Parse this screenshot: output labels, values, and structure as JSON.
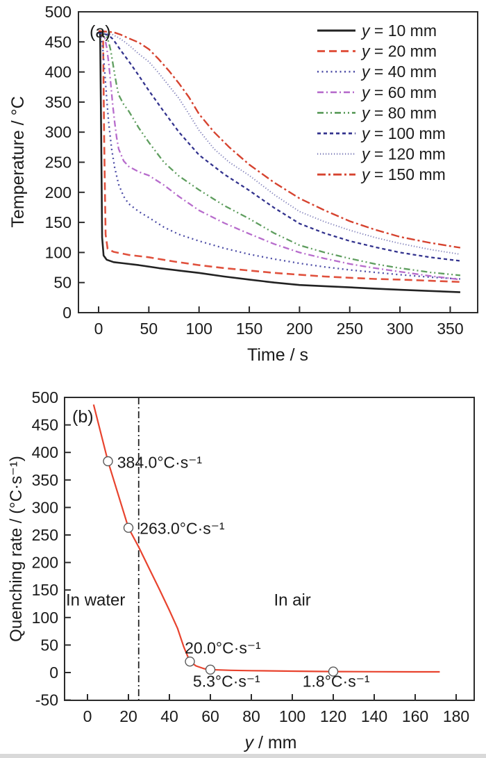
{
  "figure": {
    "background": "#ffffff",
    "frame_color": "#2b2b2b",
    "tick_label_color": "#1a1a1a"
  },
  "chart_data": [
    {
      "id": "a",
      "type": "line",
      "panel_label": "(a)",
      "xlabel": "Time / s",
      "ylabel": "Temperature / °C",
      "xlim": [
        -20,
        378
      ],
      "ylim": [
        0,
        500
      ],
      "x_ticks": [
        0,
        50,
        100,
        150,
        200,
        250,
        300,
        350
      ],
      "y_ticks": [
        0,
        50,
        100,
        150,
        200,
        250,
        300,
        350,
        400,
        450,
        500
      ],
      "grid": false,
      "legend_position": "top-right",
      "series": [
        {
          "name": "y = 10 mm",
          "label_prefix": "y",
          "label_rest": " = 10 mm",
          "color": "#222222",
          "dash": "solid",
          "width": 2.6,
          "points": [
            [
              0,
              466
            ],
            [
              1.5,
              466
            ],
            [
              2.5,
              310
            ],
            [
              3.5,
              125
            ],
            [
              5,
              95
            ],
            [
              8,
              88
            ],
            [
              15,
              84
            ],
            [
              25,
              82
            ],
            [
              40,
              79
            ],
            [
              60,
              74
            ],
            [
              80,
              70
            ],
            [
              100,
              66
            ],
            [
              125,
              60
            ],
            [
              150,
              55
            ],
            [
              175,
              50
            ],
            [
              200,
              46
            ],
            [
              225,
              44
            ],
            [
              250,
              42
            ],
            [
              275,
              40
            ],
            [
              300,
              38
            ],
            [
              330,
              36
            ],
            [
              360,
              34
            ]
          ]
        },
        {
          "name": "y = 20 mm",
          "label_prefix": "y",
          "label_rest": " = 20 mm",
          "color": "#e0513d",
          "dash": "dash",
          "width": 2.6,
          "points": [
            [
              0,
              468
            ],
            [
              3,
              466
            ],
            [
              4.5,
              455
            ],
            [
              5.5,
              290
            ],
            [
              7,
              130
            ],
            [
              9,
              106
            ],
            [
              15,
              101
            ],
            [
              30,
              96
            ],
            [
              50,
              92
            ],
            [
              75,
              85
            ],
            [
              100,
              79
            ],
            [
              125,
              74
            ],
            [
              150,
              70
            ],
            [
              175,
              66
            ],
            [
              200,
              63
            ],
            [
              225,
              60
            ],
            [
              250,
              58
            ],
            [
              275,
              56
            ],
            [
              300,
              55
            ],
            [
              330,
              53
            ],
            [
              360,
              51
            ]
          ]
        },
        {
          "name": "y = 40 mm",
          "label_prefix": "y",
          "label_rest": " = 40 mm",
          "color": "#4c4ca6",
          "dash": "dot",
          "width": 2.3,
          "points": [
            [
              0,
              465
            ],
            [
              2,
              462
            ],
            [
              4,
              442
            ],
            [
              6,
              402
            ],
            [
              8,
              357
            ],
            [
              10,
              316
            ],
            [
              13,
              272
            ],
            [
              16,
              241
            ],
            [
              20,
              213
            ],
            [
              25,
              193
            ],
            [
              30,
              181
            ],
            [
              40,
              168
            ],
            [
              50,
              158
            ],
            [
              65,
              142
            ],
            [
              80,
              130
            ],
            [
              100,
              119
            ],
            [
              125,
              107
            ],
            [
              150,
              97
            ],
            [
              175,
              89
            ],
            [
              200,
              82
            ],
            [
              225,
              76
            ],
            [
              250,
              71
            ],
            [
              275,
              67
            ],
            [
              300,
              63
            ],
            [
              330,
              59
            ],
            [
              360,
              56
            ]
          ]
        },
        {
          "name": "y = 60 mm",
          "label_prefix": "y",
          "label_rest": " = 60 mm",
          "color": "#b76ccc",
          "dash": "dashdot",
          "width": 2.3,
          "points": [
            [
              0,
              466
            ],
            [
              4,
              464
            ],
            [
              6,
              458
            ],
            [
              8,
              441
            ],
            [
              10,
              416
            ],
            [
              12,
              382
            ],
            [
              14,
              346
            ],
            [
              16,
              316
            ],
            [
              18,
              291
            ],
            [
              20,
              272
            ],
            [
              25,
              252
            ],
            [
              30,
              243
            ],
            [
              40,
              234
            ],
            [
              50,
              228
            ],
            [
              65,
              212
            ],
            [
              80,
              193
            ],
            [
              100,
              170
            ],
            [
              125,
              149
            ],
            [
              150,
              131
            ],
            [
              175,
              114
            ],
            [
              200,
              100
            ],
            [
              225,
              90
            ],
            [
              250,
              81
            ],
            [
              275,
              74
            ],
            [
              300,
              68
            ],
            [
              330,
              61
            ],
            [
              360,
              55
            ]
          ]
        },
        {
          "name": "y = 80 mm",
          "label_prefix": "y",
          "label_rest": " = 80 mm",
          "color": "#5f9e5f",
          "dash": "dashdotdot",
          "width": 2.3,
          "points": [
            [
              0,
              465
            ],
            [
              5,
              463
            ],
            [
              8,
              459
            ],
            [
              10,
              450
            ],
            [
              12,
              436
            ],
            [
              14,
              416
            ],
            [
              16,
              396
            ],
            [
              18,
              378
            ],
            [
              20,
              362
            ],
            [
              25,
              346
            ],
            [
              30,
              335
            ],
            [
              40,
              307
            ],
            [
              50,
              283
            ],
            [
              65,
              250
            ],
            [
              80,
              227
            ],
            [
              100,
              204
            ],
            [
              125,
              178
            ],
            [
              150,
              156
            ],
            [
              175,
              132
            ],
            [
              200,
              112
            ],
            [
              225,
              100
            ],
            [
              250,
              90
            ],
            [
              275,
              81
            ],
            [
              300,
              74
            ],
            [
              330,
              67
            ],
            [
              360,
              62
            ]
          ]
        },
        {
          "name": "y = 100 mm",
          "label_prefix": "y",
          "label_rest": " = 100 mm",
          "color": "#33338e",
          "dash": "shortdash",
          "width": 2.3,
          "points": [
            [
              0,
              465
            ],
            [
              6,
              463
            ],
            [
              10,
              461
            ],
            [
              14,
              455
            ],
            [
              18,
              446
            ],
            [
              22,
              436
            ],
            [
              26,
              427
            ],
            [
              30,
              418
            ],
            [
              40,
              394
            ],
            [
              50,
              369
            ],
            [
              65,
              334
            ],
            [
              80,
              300
            ],
            [
              100,
              262
            ],
            [
              125,
              230
            ],
            [
              150,
              203
            ],
            [
              175,
              174
            ],
            [
              200,
              148
            ],
            [
              225,
              132
            ],
            [
              250,
              119
            ],
            [
              275,
              109
            ],
            [
              300,
              100
            ],
            [
              330,
              92
            ],
            [
              360,
              86
            ]
          ]
        },
        {
          "name": "y = 120 mm",
          "label_prefix": "y",
          "label_rest": " = 120 mm",
          "color": "#7d7db8",
          "dash": "finedot",
          "width": 2.0,
          "points": [
            [
              0,
              466
            ],
            [
              8,
              464
            ],
            [
              14,
              462
            ],
            [
              20,
              457
            ],
            [
              26,
              450
            ],
            [
              32,
              442
            ],
            [
              40,
              430
            ],
            [
              50,
              417
            ],
            [
              60,
              398
            ],
            [
              70,
              377
            ],
            [
              80,
              356
            ],
            [
              90,
              330
            ],
            [
              100,
              303
            ],
            [
              115,
              272
            ],
            [
              130,
              250
            ],
            [
              150,
              228
            ],
            [
              175,
              196
            ],
            [
              200,
              168
            ],
            [
              225,
              151
            ],
            [
              250,
              137
            ],
            [
              275,
              125
            ],
            [
              300,
              115
            ],
            [
              330,
              105
            ],
            [
              360,
              97
            ]
          ]
        },
        {
          "name": "y = 150 mm",
          "label_prefix": "y",
          "label_rest": " = 150 mm",
          "color": "#d6432f",
          "dash": "dashdot2",
          "width": 2.4,
          "points": [
            [
              0,
              468
            ],
            [
              8,
              467
            ],
            [
              15,
              466
            ],
            [
              22,
              462
            ],
            [
              30,
              456
            ],
            [
              40,
              449
            ],
            [
              50,
              438
            ],
            [
              60,
              421
            ],
            [
              70,
              402
            ],
            [
              80,
              381
            ],
            [
              90,
              358
            ],
            [
              100,
              330
            ],
            [
              115,
              300
            ],
            [
              130,
              275
            ],
            [
              150,
              246
            ],
            [
              175,
              216
            ],
            [
              200,
              190
            ],
            [
              225,
              170
            ],
            [
              250,
              152
            ],
            [
              275,
              138
            ],
            [
              300,
              126
            ],
            [
              330,
              116
            ],
            [
              360,
              108
            ]
          ]
        }
      ]
    },
    {
      "id": "b",
      "type": "line",
      "panel_label": "(b)",
      "xlabel_prefix": "y",
      "xlabel_rest": " / mm",
      "ylabel": "Quenching rate / (°C·s⁻¹)",
      "xlim": [
        -11,
        189
      ],
      "ylim": [
        -50,
        500
      ],
      "x_ticks": [
        0,
        20,
        40,
        60,
        80,
        100,
        120,
        140,
        160,
        180
      ],
      "y_ticks": [
        -50,
        0,
        50,
        100,
        150,
        200,
        250,
        300,
        350,
        400,
        450,
        500
      ],
      "grid": false,
      "line_color": "#e8432e",
      "line_width": 2.2,
      "points": [
        [
          3,
          487
        ],
        [
          10,
          384
        ],
        [
          20,
          263
        ],
        [
          25,
          228
        ],
        [
          30,
          190
        ],
        [
          35,
          152
        ],
        [
          40,
          113
        ],
        [
          44,
          80
        ],
        [
          47,
          47
        ],
        [
          50,
          20
        ],
        [
          53,
          12
        ],
        [
          57,
          7
        ],
        [
          60,
          5.3
        ],
        [
          70,
          4
        ],
        [
          80,
          3.4
        ],
        [
          100,
          2.5
        ],
        [
          120,
          1.8
        ],
        [
          140,
          1.5
        ],
        [
          160,
          1.3
        ],
        [
          172,
          1.2
        ]
      ],
      "marker_fill": "#ffffff",
      "marker_stroke": "#5a5a5a",
      "markers": [
        {
          "x": 10,
          "y": 384,
          "label": "384.0°C·s⁻¹",
          "label_x": 14.5,
          "label_v": 372
        },
        {
          "x": 20,
          "y": 263,
          "label": "263.0°C·s⁻¹",
          "label_x": 25.5,
          "label_v": 252
        },
        {
          "x": 50,
          "y": 20,
          "label": "20.0°C·s⁻¹",
          "label_x": 47.5,
          "label_v": 35
        },
        {
          "x": 60,
          "y": 5.3,
          "label": "5.3°C·s⁻¹",
          "label_x": 51.5,
          "label_v": -26
        },
        {
          "x": 120,
          "y": 1.8,
          "label": "1.8°C·s⁻¹",
          "label_x": 105,
          "label_v": -26
        }
      ],
      "divider_x": 25,
      "divider_color": "#222222",
      "region_labels": [
        {
          "text": "In water",
          "x": -10.5,
          "v": 122
        },
        {
          "text": "In air",
          "x": 91,
          "v": 122
        }
      ]
    }
  ]
}
